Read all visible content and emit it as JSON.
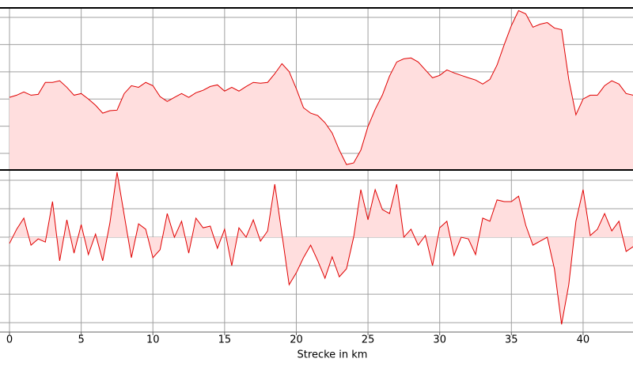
{
  "chart_data": [
    {
      "type": "area",
      "color": "#e00000",
      "fill": "#ffdede",
      "grid": true,
      "x": [
        0,
        0.5,
        1,
        1.5,
        2,
        2.5,
        3,
        3.5,
        4,
        4.5,
        5,
        5.5,
        6,
        6.5,
        7,
        7.5,
        8,
        8.5,
        9,
        9.5,
        10,
        10.5,
        11,
        11.5,
        12,
        12.5,
        13,
        13.5,
        14,
        14.5,
        15,
        15.5,
        16,
        16.5,
        17,
        17.5,
        18,
        18.5,
        19,
        19.5,
        20,
        20.5,
        21,
        21.5,
        22,
        22.5,
        23,
        23.5,
        24,
        24.5,
        25,
        25.5,
        26,
        26.5,
        27,
        27.5,
        28,
        28.5,
        29,
        29.5,
        30,
        30.5,
        31,
        31.5,
        32,
        32.5,
        33,
        33.5,
        34,
        34.5,
        35,
        35.5,
        36,
        36.5,
        37,
        37.5,
        38,
        38.5,
        39,
        39.5,
        40,
        40.5,
        41,
        41.5,
        42,
        42.5,
        43,
        43.5
      ],
      "values": [
        3.06,
        3.14,
        3.26,
        3.14,
        3.17,
        3.61,
        3.61,
        3.67,
        3.43,
        3.14,
        3.2,
        3.0,
        2.77,
        2.48,
        2.57,
        2.59,
        3.2,
        3.49,
        3.43,
        3.61,
        3.49,
        3.09,
        2.91,
        3.06,
        3.2,
        3.06,
        3.23,
        3.32,
        3.46,
        3.52,
        3.29,
        3.43,
        3.29,
        3.46,
        3.61,
        3.58,
        3.61,
        3.93,
        4.3,
        4.01,
        3.38,
        2.68,
        2.48,
        2.39,
        2.13,
        1.75,
        1.12,
        0.59,
        0.65,
        1.12,
        1.99,
        2.62,
        3.14,
        3.84,
        4.36,
        4.48,
        4.51,
        4.36,
        4.07,
        3.78,
        3.87,
        4.07,
        3.96,
        3.87,
        3.78,
        3.7,
        3.55,
        3.72,
        4.25,
        5.0,
        5.7,
        6.25,
        6.13,
        5.64,
        5.75,
        5.81,
        5.61,
        5.55,
        3.72,
        2.42,
        3.0,
        3.14,
        3.14,
        3.49,
        3.67,
        3.55,
        3.2,
        3.14
      ],
      "xlim": [
        0,
        43.48
      ],
      "xticks": [
        0,
        5,
        10,
        15,
        20,
        25,
        30,
        35,
        40
      ],
      "ylim": [
        0.39,
        6.35
      ],
      "yticks": [
        1,
        2,
        3,
        4,
        5,
        6
      ]
    },
    {
      "type": "area",
      "color": "#e00000",
      "fill": "#ffdede",
      "grid": true,
      "x_label": "Strecke in km",
      "x": [
        0,
        0.5,
        1,
        1.5,
        2,
        2.5,
        3,
        3.5,
        4,
        4.5,
        5,
        5.5,
        6,
        6.5,
        7,
        7.5,
        8,
        8.5,
        9,
        9.5,
        10,
        10.5,
        11,
        11.5,
        12,
        12.5,
        13,
        13.5,
        14,
        14.5,
        15,
        15.5,
        16,
        16.5,
        17,
        17.5,
        18,
        18.5,
        19,
        19.5,
        20,
        20.5,
        21,
        21.5,
        22,
        22.5,
        23,
        23.5,
        24,
        24.5,
        25,
        25.5,
        26,
        26.5,
        27,
        27.5,
        28,
        28.5,
        29,
        29.5,
        30,
        30.5,
        31,
        31.5,
        32,
        32.5,
        33,
        33.5,
        34,
        34.5,
        35,
        35.5,
        36,
        36.5,
        37,
        37.5,
        38,
        38.5,
        39,
        39.5,
        40,
        40.5,
        41,
        41.5,
        42,
        42.5,
        43,
        43.5
      ],
      "values": [
        -0.22,
        0.28,
        0.67,
        -0.28,
        -0.06,
        -0.17,
        1.25,
        -0.83,
        0.61,
        -0.56,
        0.44,
        -0.61,
        0.11,
        -0.83,
        0.5,
        2.28,
        0.78,
        -0.72,
        0.47,
        0.28,
        -0.72,
        -0.44,
        0.83,
        0,
        0.56,
        -0.56,
        0.67,
        0.33,
        0.39,
        -0.39,
        0.28,
        -1.0,
        0.33,
        0,
        0.61,
        -0.14,
        0.22,
        1.86,
        0.11,
        -1.67,
        -1.25,
        -0.72,
        -0.28,
        -0.83,
        -1.44,
        -0.69,
        -1.39,
        -1.11,
        0,
        1.67,
        0.61,
        1.67,
        0.97,
        0.83,
        1.86,
        0,
        0.28,
        -0.28,
        0.06,
        -1.0,
        0.33,
        0.56,
        -0.64,
        0,
        -0.06,
        -0.61,
        0.67,
        0.56,
        1.31,
        1.25,
        1.25,
        1.44,
        0.42,
        -0.28,
        -0.14,
        0,
        -1.11,
        -3.06,
        -1.67,
        0.56,
        1.67,
        0.06,
        0.28,
        0.83,
        0.22,
        0.56,
        -0.5,
        -0.33
      ],
      "xlim": [
        0,
        43.48
      ],
      "xticks": [
        0,
        5,
        10,
        15,
        20,
        25,
        30,
        35,
        40
      ],
      "ylim": [
        -3.33,
        2.36
      ],
      "yticks": [
        2,
        1,
        0,
        -1,
        -2,
        -3
      ]
    }
  ]
}
